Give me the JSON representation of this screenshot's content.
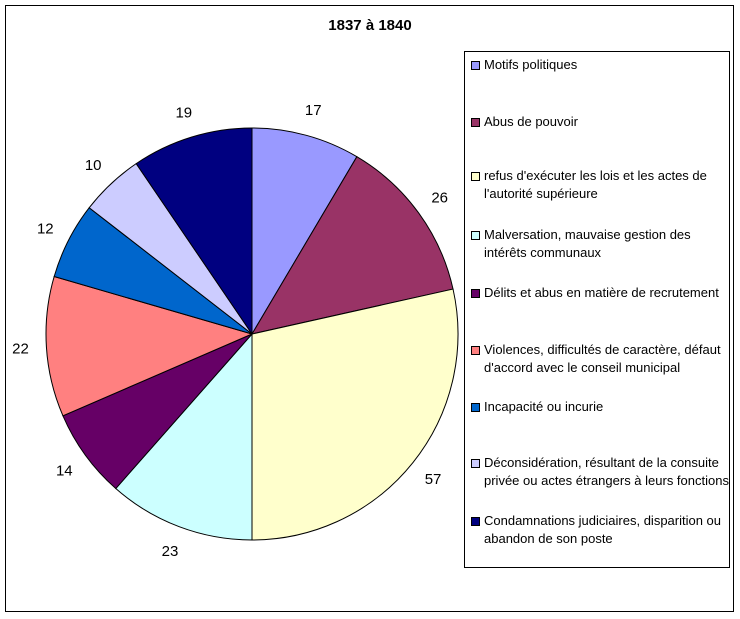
{
  "chart_data": {
    "type": "pie",
    "title": "1837 à 1840",
    "slices": [
      {
        "label": "Motifs politiques",
        "value": 17,
        "color": "#9999FF"
      },
      {
        "label": "Abus de pouvoir",
        "value": 26,
        "color": "#993366"
      },
      {
        "label": "refus d'exécuter les lois et les actes de l'autorité supérieure",
        "value": 57,
        "color": "#FFFFCC"
      },
      {
        "label": "Malversation, mauvaise gestion des intérêts communaux",
        "value": 23,
        "color": "#CCFFFF"
      },
      {
        "label": "Délits et abus en matière de recrutement",
        "value": 14,
        "color": "#660066"
      },
      {
        "label": "Violences, difficultés de caractère, défaut d'accord avec le conseil municipal",
        "value": 22,
        "color": "#FF8080"
      },
      {
        "label": "Incapacité ou incurie",
        "value": 12,
        "color": "#0066CC"
      },
      {
        "label": "Déconsidération, résultant de la consuite privée ou actes étrangers à leurs fonctions",
        "value": 10,
        "color": "#CCCCFF"
      },
      {
        "label": "Condamnations judiciaires, disparition ou abandon de son poste",
        "value": 19,
        "color": "#000080"
      }
    ],
    "legend_position": "right"
  }
}
